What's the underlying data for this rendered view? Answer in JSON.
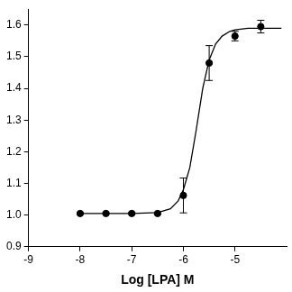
{
  "chart_data": {
    "type": "scatter",
    "x_label": "Log [LPA] M",
    "xlim": [
      -9,
      -4
    ],
    "xticks": [
      -9,
      -8,
      -7,
      -6,
      -5
    ],
    "ylim": [
      0.9,
      1.65
    ],
    "yticks": [
      0.9,
      {
        "value": 1,
        "label": "1.0"
      },
      1.1,
      1.2,
      1.3,
      1.4,
      1.5,
      1.6
    ],
    "grid": false,
    "series": [
      {
        "type": "scatter",
        "marker": "circle",
        "color": "#000000",
        "x": [
          -8,
          -7.5,
          -7,
          -6.5,
          -6,
          -5.5,
          -5,
          -4.5
        ],
        "values": [
          1.005,
          1.005,
          1.005,
          1.005,
          1.062,
          1.48,
          1.565,
          1.595
        ],
        "errors": [
          0.003,
          0.003,
          0.003,
          0.003,
          0.055,
          0.055,
          0.015,
          0.02
        ]
      },
      {
        "type": "line",
        "line_style": "solid",
        "color": "#000000",
        "x": [
          -8,
          -7.5,
          -7,
          -6.5,
          -6.25,
          -6.1,
          -6,
          -5.875,
          -5.75,
          -5.625,
          -5.5,
          -5.375,
          -5.25,
          -5.1,
          -5,
          -4.75,
          -4.5,
          -4.1
        ],
        "values": [
          1.005,
          1.005,
          1.005,
          1.008,
          1.02,
          1.045,
          1.08,
          1.15,
          1.27,
          1.4,
          1.49,
          1.54,
          1.565,
          1.58,
          1.585,
          1.59,
          1.59,
          1.59
        ]
      }
    ]
  }
}
